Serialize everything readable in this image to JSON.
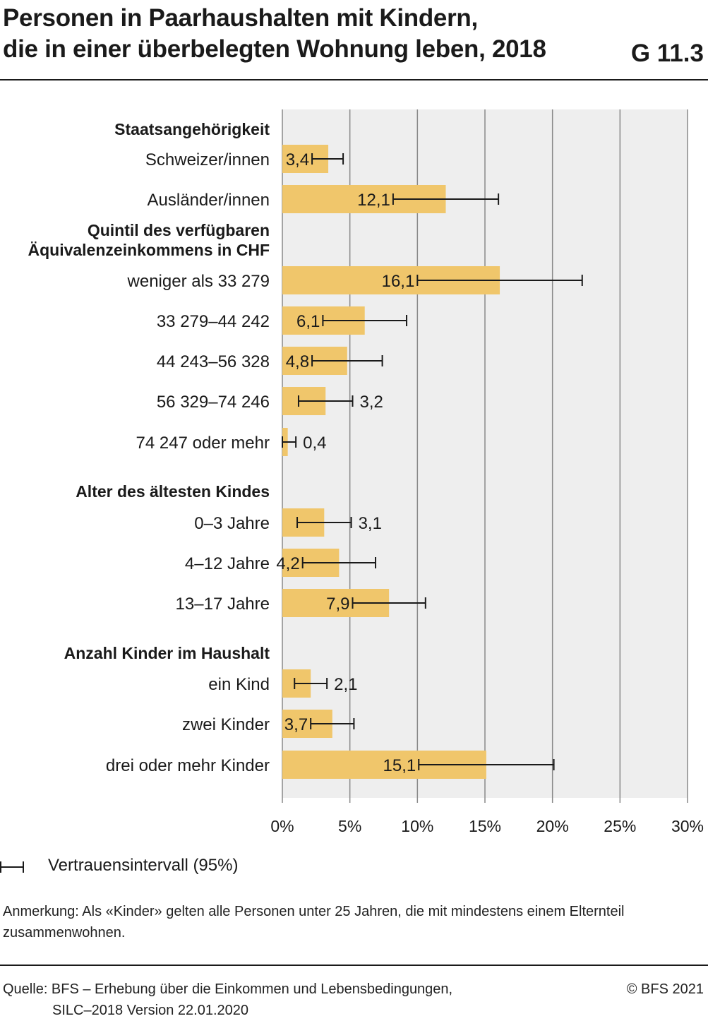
{
  "header": {
    "title_line1": "Personen in Paarhaushalten mit Kindern,",
    "title_line2": "die in einer überbelegten Wohnung leben, 2018",
    "code": "G 11.3"
  },
  "colors": {
    "bar": "#f0c66b",
    "plot_background": "#eeeeee",
    "gridline": "#888888",
    "text": "#1a1a1a"
  },
  "chart_data": {
    "type": "bar",
    "orientation": "horizontal",
    "xlim": [
      0,
      30
    ],
    "x_ticks": [
      "0%",
      "5%",
      "10%",
      "15%",
      "20%",
      "25%",
      "30%"
    ],
    "grid": true,
    "groups": [
      {
        "heading": "Staatsangehörigkeit",
        "rows": [
          {
            "label": "Schweizer/innen",
            "value": 3.4,
            "value_label": "3,4",
            "ci": [
              2.2,
              4.5
            ]
          },
          {
            "label": "Ausländer/innen",
            "value": 12.1,
            "value_label": "12,1",
            "ci": [
              8.2,
              16.0
            ]
          }
        ]
      },
      {
        "heading": "Quintil des verfügbaren Äquivalenzeinkommens in CHF",
        "rows": [
          {
            "label": "weniger als 33 279",
            "value": 16.1,
            "value_label": "16,1",
            "ci": [
              10.0,
              22.2
            ]
          },
          {
            "label": "33 279–44 242",
            "value": 6.1,
            "value_label": "6,1",
            "ci": [
              3.0,
              9.2
            ]
          },
          {
            "label": "44 243–56 328",
            "value": 4.8,
            "value_label": "4,8",
            "ci": [
              2.2,
              7.4
            ]
          },
          {
            "label": "56 329–74 246",
            "value": 3.2,
            "value_label": "3,2",
            "ci": [
              1.2,
              5.2
            ]
          },
          {
            "label": "74 247 oder mehr",
            "value": 0.4,
            "value_label": "0,4",
            "ci": [
              0.0,
              1.0
            ]
          }
        ]
      },
      {
        "heading": "Alter des ältesten Kindes",
        "rows": [
          {
            "label": "0–3 Jahre",
            "value": 3.1,
            "value_label": "3,1",
            "ci": [
              1.1,
              5.1
            ]
          },
          {
            "label": "4–12 Jahre",
            "value": 4.2,
            "value_label": "4,2",
            "ci": [
              1.5,
              6.9
            ]
          },
          {
            "label": "13–17 Jahre",
            "value": 7.9,
            "value_label": "7,9",
            "ci": [
              5.2,
              10.6
            ]
          }
        ]
      },
      {
        "heading": "Anzahl Kinder im Haushalt",
        "rows": [
          {
            "label": "ein Kind",
            "value": 2.1,
            "value_label": "2,1",
            "ci": [
              0.9,
              3.3
            ]
          },
          {
            "label": "zwei Kinder",
            "value": 3.7,
            "value_label": "3,7",
            "ci": [
              2.1,
              5.3
            ]
          },
          {
            "label": "drei oder mehr Kinder",
            "value": 15.1,
            "value_label": "15,1",
            "ci": [
              10.1,
              20.1
            ]
          }
        ]
      }
    ]
  },
  "legend": {
    "label": "Vertrauensintervall (95%)"
  },
  "note": "Anmerkung: Als «Kinder» gelten alle Personen unter 25 Jahren, die mit mindestens einem Elternteil zusammenwohnen.",
  "footer": {
    "source_line1": "Quelle: BFS – Erhebung über die Einkommen und Lebensbedingungen,",
    "source_line2": "SILC–2018 Version 22.01.2020",
    "copyright": "© BFS 2021"
  }
}
